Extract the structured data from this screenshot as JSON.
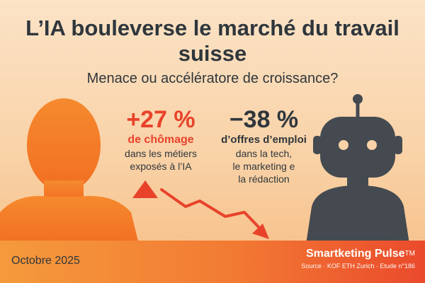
{
  "header": {
    "title": "L’IA bouleverse le marché du travail suisse",
    "subtitle": "Menace ou accélératore de croissance?"
  },
  "stats": {
    "left": {
      "value": "+27 %",
      "label": "de chômage",
      "description_line1": "dans les métiers",
      "description_line2": "exposés à l’IA"
    },
    "right": {
      "value": "−38 %",
      "label": "d’offres d’emploi",
      "description_line1": "dans la tech,",
      "description_line2": "le marketing e",
      "description_line3": "la rédaction"
    }
  },
  "footer": {
    "date": "Octobre 2025",
    "brand": "Smartketing Pulse",
    "trademark": "TM",
    "source": "Source · KOF ETH Zurich · Etude n°186"
  },
  "icons": {
    "person": "person-silhouette-icon",
    "robot": "robot-icon",
    "arrow_up": "triangle-up-icon",
    "arrow_down": "trend-down-arrow-icon"
  },
  "colors": {
    "accent_red": "#e8432a",
    "accent_orange": "#f47a2c",
    "dark": "#2f363c",
    "robot": "#444a50"
  }
}
